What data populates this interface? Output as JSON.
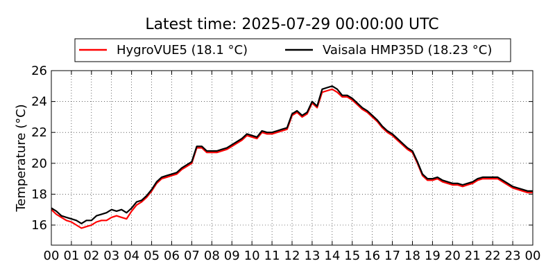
{
  "chart_data": {
    "type": "line",
    "title": "Latest time: 2025-07-29 00:00:00 UTC",
    "ylabel": "Temperature (°C)",
    "xlabel": "",
    "xlim": [
      0,
      24
    ],
    "ylim": [
      14.7,
      26
    ],
    "yticks": [
      16,
      18,
      20,
      22,
      24,
      26
    ],
    "xticks": [
      "00",
      "01",
      "02",
      "03",
      "04",
      "05",
      "06",
      "07",
      "08",
      "09",
      "10",
      "11",
      "12",
      "13",
      "14",
      "15",
      "16",
      "17",
      "18",
      "19",
      "20",
      "21",
      "22",
      "23",
      "00"
    ],
    "grid": true,
    "legend_position": "top",
    "series": [
      {
        "name": "HygroVUE5 (18.1 °C)",
        "color": "#ff0000",
        "x": [
          0,
          0.25,
          0.5,
          0.75,
          1.0,
          1.25,
          1.5,
          1.75,
          2.0,
          2.25,
          2.5,
          2.75,
          3.0,
          3.25,
          3.5,
          3.75,
          4.0,
          4.25,
          4.5,
          4.75,
          5.0,
          5.25,
          5.5,
          5.75,
          6.0,
          6.25,
          6.5,
          6.75,
          7.0,
          7.25,
          7.5,
          7.75,
          8.0,
          8.25,
          8.5,
          8.75,
          9.0,
          9.25,
          9.5,
          9.75,
          10.0,
          10.25,
          10.5,
          10.75,
          11.0,
          11.25,
          11.5,
          11.75,
          12.0,
          12.25,
          12.5,
          12.75,
          13.0,
          13.25,
          13.5,
          13.75,
          14.0,
          14.25,
          14.5,
          14.75,
          15.0,
          15.25,
          15.5,
          15.75,
          16.0,
          16.25,
          16.5,
          16.75,
          17.0,
          17.25,
          17.5,
          17.75,
          18.0,
          18.25,
          18.5,
          18.75,
          19.0,
          19.25,
          19.5,
          19.75,
          20.0,
          20.25,
          20.5,
          20.75,
          21.0,
          21.25,
          21.5,
          21.75,
          22.0,
          22.25,
          22.5,
          22.75,
          23.0,
          23.25,
          23.5,
          23.75,
          24.0
        ],
        "values": [
          17.0,
          16.7,
          16.5,
          16.3,
          16.2,
          16.0,
          15.8,
          15.9,
          16.0,
          16.2,
          16.3,
          16.3,
          16.5,
          16.6,
          16.5,
          16.4,
          16.9,
          17.3,
          17.5,
          17.8,
          18.2,
          18.7,
          19.0,
          19.1,
          19.2,
          19.3,
          19.6,
          19.8,
          20.0,
          21.0,
          21.0,
          20.7,
          20.7,
          20.7,
          20.8,
          20.9,
          21.1,
          21.3,
          21.5,
          21.8,
          21.7,
          21.6,
          22.0,
          21.9,
          21.9,
          22.0,
          22.1,
          22.2,
          23.1,
          23.3,
          23.0,
          23.2,
          23.9,
          23.6,
          24.6,
          24.7,
          24.8,
          24.6,
          24.3,
          24.3,
          24.1,
          23.8,
          23.5,
          23.3,
          23.0,
          22.7,
          22.3,
          22.0,
          21.8,
          21.5,
          21.2,
          20.9,
          20.7,
          20.0,
          19.2,
          18.9,
          18.9,
          19.0,
          18.8,
          18.7,
          18.6,
          18.6,
          18.5,
          18.6,
          18.7,
          18.9,
          19.0,
          19.0,
          19.0,
          19.0,
          18.8,
          18.6,
          18.4,
          18.3,
          18.2,
          18.1,
          18.1
        ]
      },
      {
        "name": "Vaisala HMP35D (18.23 °C)",
        "color": "#000000",
        "x": [
          0,
          0.25,
          0.5,
          0.75,
          1.0,
          1.25,
          1.5,
          1.75,
          2.0,
          2.25,
          2.5,
          2.75,
          3.0,
          3.25,
          3.5,
          3.75,
          4.0,
          4.25,
          4.5,
          4.75,
          5.0,
          5.25,
          5.5,
          5.75,
          6.0,
          6.25,
          6.5,
          6.75,
          7.0,
          7.25,
          7.5,
          7.75,
          8.0,
          8.25,
          8.5,
          8.75,
          9.0,
          9.25,
          9.5,
          9.75,
          10.0,
          10.25,
          10.5,
          10.75,
          11.0,
          11.25,
          11.5,
          11.75,
          12.0,
          12.25,
          12.5,
          12.75,
          13.0,
          13.25,
          13.5,
          13.75,
          14.0,
          14.25,
          14.5,
          14.75,
          15.0,
          15.25,
          15.5,
          15.75,
          16.0,
          16.25,
          16.5,
          16.75,
          17.0,
          17.25,
          17.5,
          17.75,
          18.0,
          18.25,
          18.5,
          18.75,
          19.0,
          19.25,
          19.5,
          19.75,
          20.0,
          20.25,
          20.5,
          20.75,
          21.0,
          21.25,
          21.5,
          21.75,
          22.0,
          22.25,
          22.5,
          22.75,
          23.0,
          23.25,
          23.5,
          23.75,
          24.0
        ],
        "values": [
          17.1,
          16.9,
          16.6,
          16.5,
          16.4,
          16.3,
          16.1,
          16.3,
          16.3,
          16.6,
          16.7,
          16.8,
          17.0,
          16.9,
          17.0,
          16.8,
          17.1,
          17.5,
          17.6,
          17.9,
          18.3,
          18.8,
          19.1,
          19.2,
          19.3,
          19.4,
          19.7,
          19.9,
          20.1,
          21.1,
          21.1,
          20.8,
          20.8,
          20.8,
          20.9,
          21.0,
          21.2,
          21.4,
          21.6,
          21.9,
          21.8,
          21.7,
          22.1,
          22.0,
          22.0,
          22.1,
          22.2,
          22.3,
          23.2,
          23.4,
          23.1,
          23.3,
          24.0,
          23.7,
          24.8,
          24.9,
          25.0,
          24.8,
          24.4,
          24.4,
          24.2,
          23.9,
          23.6,
          23.4,
          23.1,
          22.8,
          22.4,
          22.1,
          21.9,
          21.6,
          21.3,
          21.0,
          20.8,
          20.1,
          19.3,
          19.0,
          19.0,
          19.1,
          18.9,
          18.8,
          18.7,
          18.7,
          18.6,
          18.7,
          18.8,
          19.0,
          19.1,
          19.1,
          19.1,
          19.1,
          18.9,
          18.7,
          18.5,
          18.4,
          18.3,
          18.2,
          18.2
        ]
      }
    ]
  }
}
